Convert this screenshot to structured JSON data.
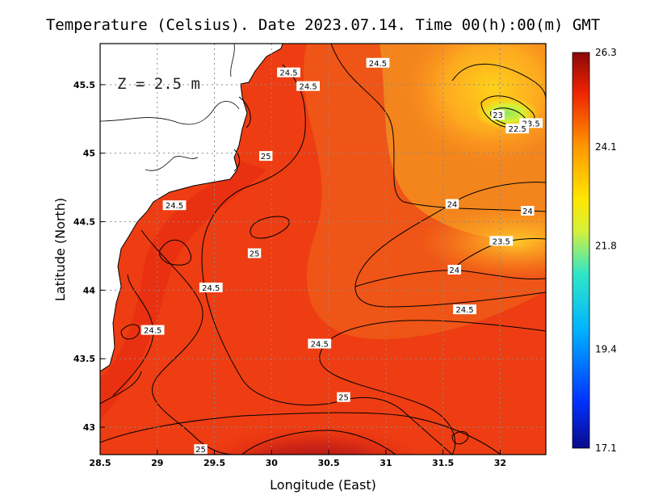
{
  "chart_data": {
    "type": "heatmap",
    "title": "Temperature (Celsius). Date 2023.07.14. Time 00(h):00(m) GMT",
    "xlabel": "Longitude (East)",
    "ylabel": "Latitude (North)",
    "depth_label": "Z = 2.5 m",
    "xlim": [
      28.5,
      32.4
    ],
    "ylim": [
      42.8,
      45.8
    ],
    "xticks": [
      28.5,
      29,
      29.5,
      30,
      30.5,
      31,
      31.5,
      32
    ],
    "xtick_labels": [
      "28.5",
      "29",
      "29.5",
      "30",
      "30.5",
      "31",
      "31.5",
      "32"
    ],
    "yticks": [
      43,
      43.5,
      44,
      44.5,
      45,
      45.5
    ],
    "ytick_labels": [
      "43",
      "43.5",
      "44",
      "44.5",
      "45",
      "45.5"
    ],
    "grid": true,
    "colorbar": {
      "min": 17.1,
      "max": 26.3,
      "ticks": [
        17.1,
        19.4,
        21.8,
        24.1,
        26.3
      ],
      "tick_labels": [
        "17.1",
        "19.4",
        "21.8",
        "24.1",
        "26.3"
      ],
      "colormap": "jet"
    },
    "contour_labels": [
      {
        "text": "24.5",
        "lon": 30.93,
        "lat": 45.66
      },
      {
        "text": "24.5",
        "lon": 30.15,
        "lat": 45.59
      },
      {
        "text": "24.5",
        "lon": 30.32,
        "lat": 45.49
      },
      {
        "text": "23",
        "lon": 31.98,
        "lat": 45.28
      },
      {
        "text": "23.5",
        "lon": 32.27,
        "lat": 45.22
      },
      {
        "text": "22.5",
        "lon": 32.15,
        "lat": 45.18
      },
      {
        "text": "25",
        "lon": 29.95,
        "lat": 44.98
      },
      {
        "text": "24.5",
        "lon": 29.15,
        "lat": 44.62
      },
      {
        "text": "24",
        "lon": 31.58,
        "lat": 44.63
      },
      {
        "text": "24",
        "lon": 32.24,
        "lat": 44.58
      },
      {
        "text": "23.5",
        "lon": 32.01,
        "lat": 44.36
      },
      {
        "text": "25",
        "lon": 29.85,
        "lat": 44.27
      },
      {
        "text": "24",
        "lon": 31.6,
        "lat": 44.15
      },
      {
        "text": "24.5",
        "lon": 29.47,
        "lat": 44.02
      },
      {
        "text": "24.5",
        "lon": 31.69,
        "lat": 43.86
      },
      {
        "text": "24.5",
        "lon": 28.96,
        "lat": 43.71
      },
      {
        "text": "24.5",
        "lon": 30.42,
        "lat": 43.61
      },
      {
        "text": "25",
        "lon": 30.63,
        "lat": 43.22
      },
      {
        "text": "25",
        "lon": 29.38,
        "lat": 42.84
      }
    ]
  }
}
